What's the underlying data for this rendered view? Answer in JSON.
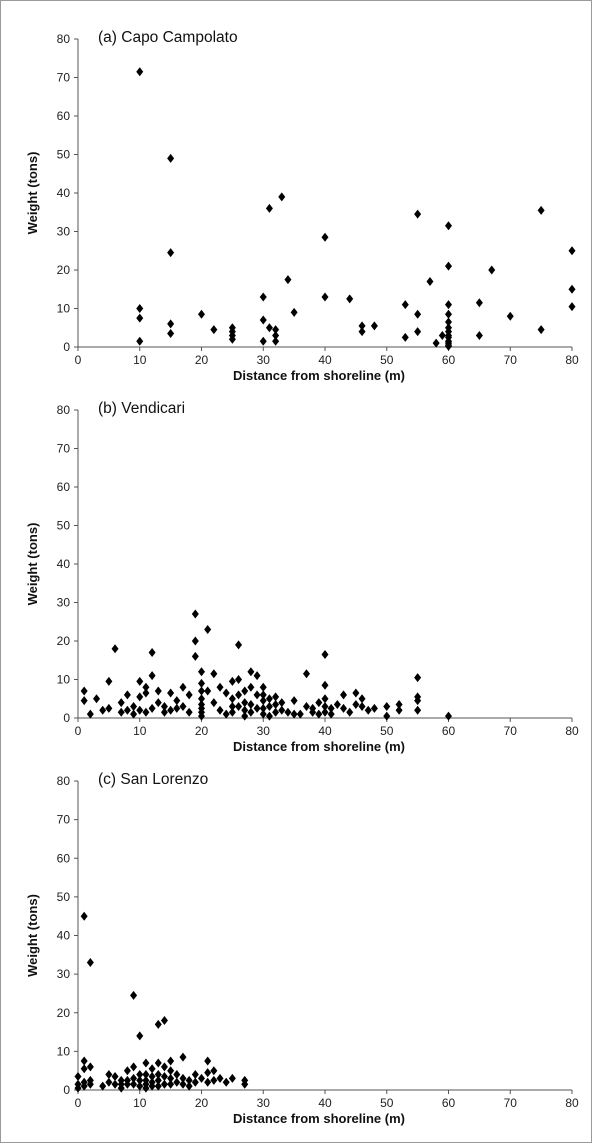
{
  "chart_data": [
    {
      "type": "scatter",
      "title": "(a) Capo Campolato",
      "xlabel": "Distance from shoreline (m)",
      "ylabel": "Weight (tons)",
      "xlim": [
        0,
        80
      ],
      "ylim": [
        0,
        80
      ],
      "xticks": [
        "0",
        "10",
        "20",
        "30",
        "40",
        "50",
        "60",
        "70",
        "80"
      ],
      "yticks": [
        "0",
        "10",
        "20",
        "30",
        "40",
        "50",
        "60",
        "70",
        "80"
      ],
      "grid": false,
      "marker": "diamond",
      "color": "#000000",
      "x": [
        10,
        10,
        10,
        10,
        15,
        15,
        15,
        15,
        20,
        22,
        25,
        25,
        25,
        25,
        30,
        30,
        30,
        31,
        31,
        32,
        32,
        32,
        33,
        34,
        35,
        40,
        40,
        44,
        46,
        46,
        48,
        53,
        53,
        55,
        55,
        55,
        57,
        58,
        59,
        60,
        60,
        60,
        60,
        60,
        60,
        60,
        60,
        60,
        60,
        60,
        60,
        60,
        65,
        65,
        67,
        70,
        75,
        75,
        80,
        80,
        80
      ],
      "y": [
        71.5,
        10,
        7.5,
        1.5,
        49,
        24.5,
        6,
        3.5,
        8.5,
        4.5,
        5,
        4,
        3,
        2,
        13,
        7,
        1.5,
        36,
        5,
        4.5,
        3,
        1.5,
        39,
        17.5,
        9,
        28.5,
        13,
        12.5,
        5.5,
        4,
        5.5,
        11,
        2.5,
        34.5,
        8.5,
        4,
        17,
        1,
        3,
        31.5,
        21,
        11,
        8.5,
        6.5,
        5,
        4,
        3,
        2.5,
        1.5,
        1,
        0.5,
        0.2,
        11.5,
        3,
        20,
        8,
        35.5,
        4.5,
        25,
        15,
        10.5
      ]
    },
    {
      "type": "scatter",
      "title": "(b) Vendicari",
      "xlabel": "Distance from shoreline (m)",
      "ylabel": "Weight (tons)",
      "xlim": [
        0,
        80
      ],
      "ylim": [
        0,
        80
      ],
      "xticks": [
        "0",
        "10",
        "20",
        "30",
        "40",
        "50",
        "60",
        "70",
        "80"
      ],
      "yticks": [
        "0",
        "10",
        "20",
        "30",
        "40",
        "50",
        "60",
        "70",
        "80"
      ],
      "grid": false,
      "marker": "diamond",
      "color": "#000000",
      "x": [
        1,
        1,
        2,
        3,
        4,
        5,
        5,
        6,
        7,
        7,
        8,
        8,
        9,
        9,
        10,
        10,
        10,
        11,
        11,
        11,
        12,
        12,
        12,
        13,
        13,
        14,
        14,
        15,
        15,
        16,
        16,
        17,
        17,
        18,
        18,
        19,
        19,
        19,
        20,
        20,
        20,
        20,
        20,
        20,
        20,
        20,
        21,
        21,
        22,
        22,
        23,
        23,
        24,
        24,
        25,
        25,
        25,
        25,
        26,
        26,
        26,
        26,
        27,
        27,
        27,
        27,
        28,
        28,
        28,
        28,
        29,
        29,
        29,
        30,
        30,
        30,
        30,
        30,
        31,
        31,
        31,
        32,
        32,
        32,
        33,
        33,
        34,
        35,
        35,
        36,
        37,
        37,
        38,
        38,
        39,
        39,
        40,
        40,
        40,
        40,
        40,
        41,
        41,
        42,
        43,
        43,
        44,
        45,
        45,
        46,
        46,
        47,
        48,
        50,
        50,
        52,
        52,
        55,
        55,
        55,
        55,
        60
      ],
      "y": [
        7,
        4.5,
        1,
        5,
        2,
        2.5,
        9.5,
        18,
        1.5,
        4,
        6,
        2,
        1,
        3,
        9.5,
        5.5,
        2,
        8,
        6.5,
        1.5,
        17,
        11,
        2.5,
        7,
        4,
        3,
        1.5,
        6.5,
        2,
        4.5,
        2.5,
        8,
        3,
        6,
        1.5,
        27,
        20,
        16,
        12,
        9,
        7,
        5,
        3.5,
        2.5,
        1.5,
        0.5,
        23,
        7,
        11.5,
        4,
        8,
        2,
        6.5,
        1,
        9.5,
        5,
        3,
        1.5,
        19,
        10,
        6,
        3,
        7,
        4,
        2,
        0.5,
        12,
        8,
        3.5,
        1.5,
        11,
        6,
        2.5,
        8,
        6,
        4.5,
        2.5,
        1,
        5,
        3,
        0.5,
        5.5,
        3.5,
        1.5,
        4,
        2,
        1.5,
        1,
        4.5,
        1,
        11.5,
        3,
        1.5,
        2.5,
        4,
        1,
        16.5,
        8.5,
        5,
        3,
        1.5,
        2.5,
        1,
        3.5,
        6,
        2.5,
        1.5,
        6.5,
        3.5,
        5,
        3,
        2,
        2.5,
        3,
        0.5,
        3.5,
        2,
        10.5,
        5.5,
        4.5,
        2,
        0.5
      ]
    },
    {
      "type": "scatter",
      "title": "(c) San Lorenzo",
      "xlabel": "Distance from shoreline (m)",
      "ylabel": "Weight (tons)",
      "xlim": [
        0,
        80
      ],
      "ylim": [
        0,
        80
      ],
      "xticks": [
        "0",
        "10",
        "20",
        "30",
        "40",
        "50",
        "60",
        "70",
        "80"
      ],
      "yticks": [
        "0",
        "10",
        "20",
        "30",
        "40",
        "50",
        "60",
        "70",
        "80"
      ],
      "grid": false,
      "marker": "diamond",
      "color": "#000000",
      "x": [
        0,
        0,
        0,
        1,
        1,
        1,
        1,
        1,
        2,
        2,
        2,
        2,
        4,
        5,
        5,
        6,
        6,
        7,
        7,
        7,
        8,
        8,
        8,
        9,
        9,
        9,
        9,
        10,
        10,
        10,
        10,
        11,
        11,
        11,
        11,
        11,
        12,
        12,
        12,
        12,
        13,
        13,
        13,
        13,
        13,
        14,
        14,
        14,
        14,
        15,
        15,
        15,
        15,
        16,
        16,
        17,
        17,
        17,
        18,
        18,
        19,
        19,
        20,
        21,
        21,
        21,
        22,
        22,
        23,
        24,
        25,
        27,
        27
      ],
      "y": [
        3.5,
        1.5,
        0.5,
        45,
        7.5,
        5.5,
        2,
        1,
        33,
        6,
        2.5,
        1.5,
        1,
        4,
        2,
        3.5,
        1.5,
        2.5,
        1.5,
        0.5,
        5,
        2.5,
        1.5,
        24.5,
        6,
        3,
        1.5,
        14,
        4,
        2.5,
        1,
        7,
        4,
        2.5,
        1.5,
        0.5,
        5.5,
        3.5,
        2,
        1,
        17,
        7,
        4,
        2.5,
        1,
        18,
        6,
        3.5,
        1.5,
        7.5,
        5,
        3,
        1.5,
        4,
        2,
        8.5,
        3,
        1.5,
        2.5,
        1,
        4,
        2,
        3,
        7.5,
        4.5,
        2,
        5,
        2.5,
        3,
        2,
        3,
        2.5,
        1.5
      ]
    }
  ]
}
